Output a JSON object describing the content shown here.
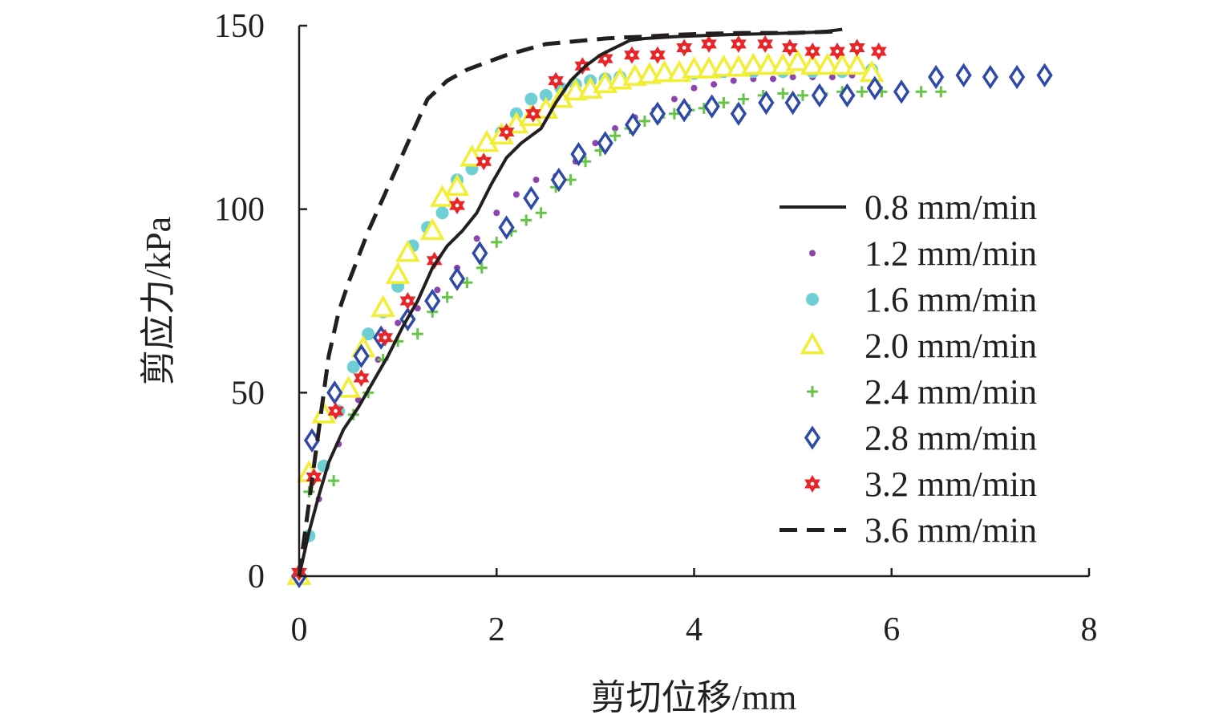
{
  "chart_data": {
    "type": "scatter",
    "title": "",
    "xlabel": "剪切位移/mm",
    "ylabel": "剪应力/kPa",
    "xlim": [
      0,
      8
    ],
    "ylim": [
      0,
      150
    ],
    "xticks": [
      "0",
      "2",
      "4",
      "6",
      "8"
    ],
    "yticks": [
      "0",
      "50",
      "100",
      "150"
    ],
    "grid": false,
    "legend_position": "right",
    "series": [
      {
        "name": "0.8 mm/min",
        "style": "line",
        "color": "#231f20",
        "marker": "none",
        "x": [
          0,
          0.1,
          0.2,
          0.3,
          0.45,
          0.6,
          0.75,
          0.9,
          1.05,
          1.2,
          1.35,
          1.5,
          1.65,
          1.8,
          1.95,
          2.1,
          2.25,
          2.45,
          2.6,
          2.75,
          2.9,
          3.05,
          3.2,
          3.35,
          3.5,
          3.8,
          4.1,
          4.4,
          4.7,
          5.0,
          5.2,
          5.35,
          5.5
        ],
        "y": [
          0,
          12,
          22,
          31,
          40,
          46,
          53,
          60,
          68,
          75,
          84,
          90,
          94,
          99,
          107,
          114,
          118,
          122,
          129,
          135,
          139,
          142,
          144,
          146,
          146.5,
          147,
          147.3,
          147.6,
          147.8,
          148,
          148.2,
          148.5,
          149
        ]
      },
      {
        "name": "1.2 mm/min",
        "style": "markers",
        "color": "#8e44ad",
        "marker": "dot",
        "x": [
          0,
          0.2,
          0.4,
          0.6,
          0.8,
          1.0,
          1.2,
          1.4,
          1.6,
          1.8,
          2.0,
          2.2,
          2.4,
          2.6,
          2.8,
          3.0,
          3.2,
          3.4,
          3.6,
          3.8,
          4.0,
          4.2,
          4.4,
          4.6,
          4.8,
          5.0,
          5.2,
          5.4,
          5.6
        ],
        "y": [
          0,
          21,
          36,
          48,
          59,
          69,
          73,
          78,
          84,
          92,
          99,
          104,
          108,
          109,
          113,
          118,
          122,
          125,
          127,
          130,
          133,
          134,
          135,
          135.5,
          135.5,
          136,
          136,
          136,
          136.5
        ]
      },
      {
        "name": "1.6 mm/min",
        "style": "markers",
        "color": "#6ecfd4",
        "marker": "circle",
        "x": [
          0.1,
          0.25,
          0.4,
          0.55,
          0.7,
          0.85,
          1.0,
          1.15,
          1.3,
          1.45,
          1.6,
          1.75,
          1.9,
          2.05,
          2.2,
          2.35,
          2.5,
          2.65,
          2.8,
          2.95,
          3.1,
          3.25,
          3.4,
          3.55,
          3.7,
          3.85,
          4.0,
          4.3,
          4.6,
          4.9,
          5.2,
          5.5,
          5.8
        ],
        "y": [
          11,
          30,
          45,
          57,
          66,
          72,
          79,
          90,
          95,
          99,
          108,
          111,
          118,
          121,
          126,
          130,
          131,
          133,
          134,
          135,
          135.5,
          136,
          136,
          136.5,
          137,
          137,
          137,
          137.5,
          137.5,
          137.5,
          137.5,
          137.5,
          138
        ]
      },
      {
        "name": "2.0 mm/min",
        "style": "markers",
        "color": "#f2ee33",
        "marker": "triangle",
        "x": [
          0,
          0.1,
          0.25,
          0.5,
          0.65,
          0.85,
          1.0,
          1.1,
          1.35,
          1.45,
          1.6,
          1.75,
          1.9,
          2.05,
          2.2,
          2.35,
          2.5,
          2.65,
          2.8,
          2.95,
          3.1,
          3.25,
          3.4,
          3.55,
          3.7,
          3.85,
          4.0,
          4.15,
          4.3,
          4.45,
          4.6,
          4.75,
          4.9,
          5.05,
          5.2,
          5.35,
          5.5,
          5.65,
          5.8
        ],
        "y": [
          0,
          28,
          44,
          51,
          62,
          73,
          82,
          88,
          94,
          103,
          106,
          114,
          118,
          120,
          123,
          125,
          127,
          130,
          132,
          132.5,
          134,
          135,
          136,
          136.5,
          137,
          137,
          138,
          138,
          138.5,
          138.5,
          139,
          139,
          139,
          140,
          139,
          139,
          139,
          139,
          137
        ]
      },
      {
        "name": "2.4 mm/min",
        "style": "markers",
        "color": "#66c447",
        "marker": "plus",
        "x": [
          0.1,
          0.35,
          0.55,
          0.7,
          0.85,
          1.0,
          1.2,
          1.35,
          1.5,
          1.7,
          1.85,
          2.0,
          2.15,
          2.3,
          2.45,
          2.6,
          2.75,
          2.9,
          3.05,
          3.2,
          3.35,
          3.5,
          3.65,
          3.8,
          3.95,
          4.1,
          4.3,
          4.5,
          4.7,
          4.9,
          5.1,
          5.3,
          5.5,
          5.7,
          5.9,
          6.1,
          6.3,
          6.5
        ],
        "y": [
          23,
          26,
          44,
          50,
          59,
          64,
          66,
          72,
          76,
          80,
          84,
          91,
          94,
          97,
          99,
          106,
          108,
          113,
          116,
          120,
          122,
          124,
          125,
          126,
          127,
          127.5,
          129,
          130,
          131,
          131.5,
          131,
          131.5,
          132,
          132,
          132,
          132,
          132,
          132
        ]
      },
      {
        "name": "2.8 mm/min",
        "style": "markers",
        "color": "#2e49a8",
        "marker": "diamond",
        "x": [
          0,
          0.13,
          0.36,
          0.63,
          0.83,
          1.1,
          1.35,
          1.6,
          1.83,
          2.1,
          2.35,
          2.63,
          2.83,
          3.1,
          3.38,
          3.63,
          3.9,
          4.18,
          4.45,
          4.73,
          5.0,
          5.27,
          5.55,
          5.83,
          6.1,
          6.45,
          6.73,
          7.0,
          7.27,
          7.55
        ],
        "y": [
          0,
          37,
          50,
          60,
          65,
          70,
          75,
          81,
          88,
          95,
          103,
          108,
          115,
          118,
          123,
          126,
          127,
          128,
          126,
          129,
          129,
          131,
          131,
          133,
          132,
          136,
          136.5,
          136,
          136,
          136.5
        ]
      },
      {
        "name": "3.2 mm/min",
        "style": "markers",
        "color": "#e8262a",
        "marker": "star",
        "x": [
          0,
          0.15,
          0.37,
          0.63,
          0.87,
          1.1,
          1.37,
          1.6,
          1.87,
          2.1,
          2.37,
          2.6,
          2.87,
          3.1,
          3.37,
          3.63,
          3.9,
          4.15,
          4.45,
          4.72,
          4.97,
          5.2,
          5.45,
          5.65,
          5.87
        ],
        "y": [
          1,
          27,
          45,
          54,
          65,
          75,
          86,
          101,
          113,
          121,
          126,
          135,
          139,
          141,
          142,
          142,
          144,
          145,
          145,
          145,
          144,
          143,
          143,
          144,
          143
        ]
      },
      {
        "name": "3.6 mm/min",
        "style": "dashed",
        "color": "#231f20",
        "marker": "none",
        "x": [
          0,
          0.1,
          0.2,
          0.3,
          0.4,
          0.5,
          0.6,
          0.7,
          0.8,
          0.9,
          1.0,
          1.1,
          1.2,
          1.3,
          1.5,
          1.7,
          1.9,
          2.1,
          2.3,
          2.5,
          2.7,
          2.9,
          3.1,
          3.3,
          3.5,
          3.8,
          4.1,
          4.5,
          5.0,
          5.5
        ],
        "y": [
          0,
          20,
          40,
          60,
          72,
          80,
          87,
          94,
          100,
          106,
          112,
          118,
          124,
          130,
          135,
          138,
          140,
          142,
          143.5,
          145,
          145.5,
          146,
          146.5,
          146.8,
          147,
          147.5,
          147.8,
          148,
          148,
          148.5
        ]
      }
    ]
  }
}
